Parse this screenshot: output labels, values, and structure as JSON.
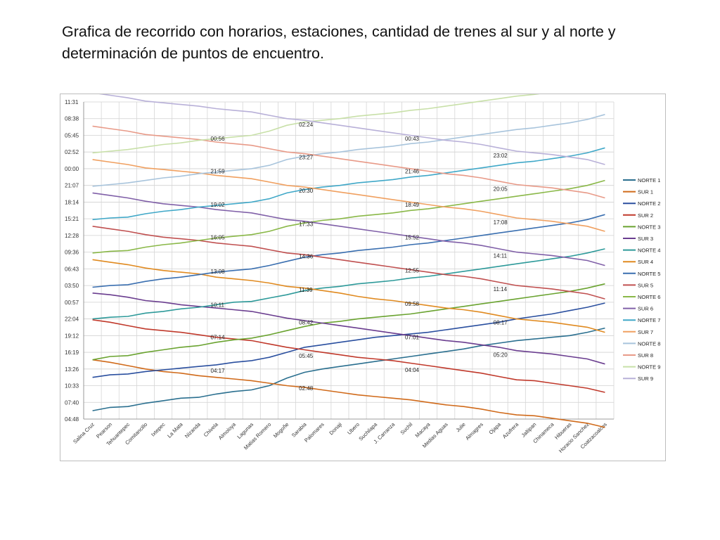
{
  "slide": {
    "title": "Grafica de recorrido con horarios, estaciones, cantidad de trenes al sur y al norte y determinación de puntos de encuentro."
  },
  "chart_data": {
    "type": "line",
    "grid": true,
    "legend_position": "right",
    "y_tick_labels": [
      "11:31",
      "08:38",
      "05:45",
      "02:52",
      "00:00",
      "21:07",
      "18:14",
      "15:21",
      "12:28",
      "09:36",
      "06:43",
      "03:50",
      "00:57",
      "22:04",
      "19:12",
      "16:19",
      "13:26",
      "10:33",
      "07:40",
      "04:48"
    ],
    "categories": [
      "Salina Cruz",
      "Pearson",
      "Tehuantepec",
      "Comitancillo",
      "Ixtepec",
      "La Mata",
      "Nizanda",
      "Chivela",
      "Almoloya",
      "Lagunas",
      "Matias Romero",
      "Mogoñe",
      "Sarabia",
      "Palomares",
      "Donaji",
      "Ubero",
      "Suchilapa",
      "J. Carranza",
      "Suchil",
      "Macaya",
      "Medias Aguas",
      "Julie",
      "Almagres",
      "Ojapa",
      "Azufrera",
      "Jaltipan",
      "Chinameca",
      "Hibueras",
      "Horacio Sanchez",
      "Coatzacoalcos"
    ],
    "series": [
      {
        "name": "NORTE 1",
        "color": "#2a6f8f",
        "values": [
          0.5,
          0.7,
          0.75,
          0.95,
          1.1,
          1.25,
          1.3,
          1.5,
          1.65,
          1.75,
          2.0,
          2.45,
          2.8,
          3.0,
          3.15,
          3.3,
          3.45,
          3.6,
          3.75,
          3.9,
          4.05,
          4.2,
          4.4,
          4.55,
          4.7,
          4.8,
          4.9,
          5.0,
          5.2,
          5.45
        ]
      },
      {
        "name": "SUR 1",
        "color": "#d06a1a",
        "values": [
          3.55,
          3.4,
          3.2,
          3.0,
          2.85,
          2.75,
          2.6,
          2.5,
          2.4,
          2.3,
          2.15,
          2.0,
          1.9,
          1.75,
          1.6,
          1.45,
          1.35,
          1.25,
          1.15,
          1.0,
          0.85,
          0.75,
          0.6,
          0.4,
          0.25,
          0.2,
          0.05,
          -0.1,
          -0.25,
          -0.5
        ]
      },
      {
        "name": "NORTE 2",
        "color": "#2a4f9f",
        "values": [
          2.5,
          2.65,
          2.7,
          2.85,
          2.95,
          3.05,
          3.15,
          3.25,
          3.4,
          3.5,
          3.7,
          4.0,
          4.3,
          4.45,
          4.6,
          4.75,
          4.9,
          5.0,
          5.1,
          5.2,
          5.35,
          5.5,
          5.65,
          5.8,
          6.0,
          6.15,
          6.3,
          6.5,
          6.7,
          6.95
        ]
      },
      {
        "name": "SUR 2",
        "color": "#c0392b",
        "values": [
          5.95,
          5.8,
          5.6,
          5.4,
          5.3,
          5.2,
          5.05,
          4.9,
          4.8,
          4.7,
          4.5,
          4.3,
          4.15,
          4.0,
          3.85,
          3.7,
          3.6,
          3.5,
          3.35,
          3.2,
          3.05,
          2.9,
          2.75,
          2.55,
          2.35,
          2.3,
          2.15,
          2.0,
          1.85,
          1.6
        ]
      },
      {
        "name": "NORTE 3",
        "color": "#6aa330",
        "values": [
          3.55,
          3.75,
          3.8,
          4.0,
          4.15,
          4.3,
          4.4,
          4.6,
          4.75,
          4.85,
          5.05,
          5.3,
          5.55,
          5.75,
          5.85,
          6.0,
          6.1,
          6.2,
          6.3,
          6.45,
          6.6,
          6.75,
          6.9,
          7.05,
          7.2,
          7.35,
          7.5,
          7.65,
          7.85,
          8.1
        ]
      },
      {
        "name": "SUR 3",
        "color": "#6a3d8f",
        "values": [
          7.55,
          7.45,
          7.3,
          7.1,
          7.0,
          6.85,
          6.75,
          6.65,
          6.55,
          6.45,
          6.25,
          6.05,
          5.9,
          5.75,
          5.6,
          5.45,
          5.3,
          5.15,
          5.0,
          4.85,
          4.7,
          4.6,
          4.45,
          4.3,
          4.1,
          4.0,
          3.9,
          3.75,
          3.6,
          3.3
        ]
      },
      {
        "name": "NORTE 4",
        "color": "#2e9a9a",
        "values": [
          6.0,
          6.1,
          6.15,
          6.35,
          6.45,
          6.6,
          6.7,
          6.85,
          7.0,
          7.05,
          7.25,
          7.45,
          7.7,
          7.85,
          7.95,
          8.1,
          8.2,
          8.3,
          8.45,
          8.55,
          8.7,
          8.85,
          9.0,
          9.15,
          9.3,
          9.45,
          9.6,
          9.75,
          9.95,
          10.2
        ]
      },
      {
        "name": "SUR 4",
        "color": "#e08a20",
        "values": [
          9.55,
          9.4,
          9.25,
          9.05,
          8.9,
          8.8,
          8.7,
          8.5,
          8.4,
          8.3,
          8.15,
          7.95,
          7.85,
          7.7,
          7.55,
          7.35,
          7.2,
          7.1,
          6.95,
          6.8,
          6.65,
          6.55,
          6.4,
          6.2,
          6.0,
          5.9,
          5.8,
          5.65,
          5.5,
          5.2
        ]
      },
      {
        "name": "NORTE 5",
        "color": "#3a6fb0",
        "values": [
          7.9,
          8.0,
          8.05,
          8.25,
          8.4,
          8.5,
          8.65,
          8.8,
          8.9,
          9.0,
          9.2,
          9.45,
          9.7,
          9.85,
          9.95,
          10.1,
          10.2,
          10.3,
          10.45,
          10.55,
          10.7,
          10.85,
          11.0,
          11.15,
          11.3,
          11.45,
          11.6,
          11.75,
          11.95,
          12.25
        ]
      },
      {
        "name": "SUR 5",
        "color": "#c05050",
        "values": [
          11.55,
          11.4,
          11.25,
          11.05,
          10.9,
          10.8,
          10.7,
          10.55,
          10.45,
          10.35,
          10.15,
          9.95,
          9.85,
          9.7,
          9.55,
          9.4,
          9.25,
          9.1,
          8.95,
          8.8,
          8.65,
          8.55,
          8.4,
          8.2,
          8.0,
          7.9,
          7.8,
          7.65,
          7.5,
          7.2
        ]
      },
      {
        "name": "NORTE 6",
        "color": "#8ab848",
        "values": [
          9.95,
          10.05,
          10.1,
          10.3,
          10.45,
          10.55,
          10.7,
          10.85,
          10.95,
          11.05,
          11.25,
          11.55,
          11.75,
          11.9,
          12.0,
          12.15,
          12.25,
          12.35,
          12.5,
          12.6,
          12.75,
          12.9,
          13.05,
          13.2,
          13.35,
          13.5,
          13.65,
          13.8,
          14.0,
          14.3
        ]
      },
      {
        "name": "SUR 6",
        "color": "#8060a8",
        "values": [
          13.55,
          13.4,
          13.25,
          13.05,
          12.9,
          12.8,
          12.7,
          12.55,
          12.45,
          12.35,
          12.15,
          11.95,
          11.85,
          11.7,
          11.55,
          11.4,
          11.25,
          11.1,
          10.95,
          10.8,
          10.65,
          10.55,
          10.4,
          10.2,
          10.0,
          9.9,
          9.8,
          9.65,
          9.5,
          9.2
        ]
      },
      {
        "name": "NORTE 7",
        "color": "#40a8c8",
        "values": [
          11.95,
          12.05,
          12.1,
          12.3,
          12.45,
          12.55,
          12.7,
          12.8,
          12.9,
          13.0,
          13.2,
          13.55,
          13.75,
          13.9,
          14.0,
          14.15,
          14.25,
          14.35,
          14.5,
          14.6,
          14.75,
          14.9,
          15.05,
          15.2,
          15.35,
          15.45,
          15.6,
          15.75,
          15.95,
          16.25
        ]
      },
      {
        "name": "SUR 7",
        "color": "#f0a060",
        "values": [
          15.55,
          15.4,
          15.25,
          15.05,
          14.95,
          14.85,
          14.75,
          14.6,
          14.5,
          14.4,
          14.2,
          14.0,
          13.9,
          13.75,
          13.6,
          13.45,
          13.3,
          13.15,
          13.0,
          12.85,
          12.7,
          12.6,
          12.45,
          12.25,
          12.05,
          11.95,
          11.85,
          11.7,
          11.55,
          11.25
        ]
      },
      {
        "name": "NORTE 8",
        "color": "#a8c4dc",
        "values": [
          13.95,
          14.05,
          14.15,
          14.3,
          14.45,
          14.55,
          14.7,
          14.8,
          14.9,
          15.0,
          15.2,
          15.55,
          15.75,
          15.9,
          16.0,
          16.15,
          16.25,
          16.35,
          16.5,
          16.6,
          16.75,
          16.9,
          17.05,
          17.2,
          17.35,
          17.45,
          17.6,
          17.75,
          17.95,
          18.25
        ]
      },
      {
        "name": "SUR 8",
        "color": "#e89a88",
        "values": [
          17.55,
          17.4,
          17.25,
          17.05,
          16.95,
          16.85,
          16.75,
          16.6,
          16.5,
          16.4,
          16.2,
          16.0,
          15.9,
          15.75,
          15.6,
          15.45,
          15.3,
          15.15,
          15.0,
          14.85,
          14.7,
          14.6,
          14.45,
          14.25,
          14.05,
          13.95,
          13.85,
          13.7,
          13.55,
          13.25
        ]
      },
      {
        "name": "NORTE 9",
        "color": "#c8e0a8",
        "values": [
          15.95,
          16.05,
          16.15,
          16.3,
          16.45,
          16.55,
          16.7,
          16.8,
          16.9,
          17.0,
          17.25,
          17.6,
          17.8,
          17.9,
          18.0,
          18.15,
          18.25,
          18.35,
          18.5,
          18.6,
          18.75,
          18.9,
          19.05,
          19.2,
          19.35,
          19.45,
          19.6,
          19.75,
          19.95,
          20.25
        ]
      },
      {
        "name": "SUR 9",
        "color": "#b8b0d8",
        "values": [
          19.55,
          19.4,
          19.25,
          19.05,
          18.95,
          18.85,
          18.75,
          18.6,
          18.5,
          18.4,
          18.2,
          18.0,
          17.9,
          17.75,
          17.6,
          17.45,
          17.3,
          17.15,
          17.0,
          16.85,
          16.7,
          16.6,
          16.45,
          16.25,
          16.05,
          15.95,
          15.85,
          15.7,
          15.55,
          15.25
        ]
      }
    ],
    "annotations": [
      {
        "text": "00:56",
        "cat": 7,
        "v": 16.8
      },
      {
        "text": "21:59",
        "cat": 7,
        "v": 14.85
      },
      {
        "text": "19:02",
        "cat": 7,
        "v": 12.85
      },
      {
        "text": "16:05",
        "cat": 7,
        "v": 10.9
      },
      {
        "text": "13:08",
        "cat": 7,
        "v": 8.85
      },
      {
        "text": "10:11",
        "cat": 7,
        "v": 6.85
      },
      {
        "text": "07:14",
        "cat": 7,
        "v": 4.9
      },
      {
        "text": "04:17",
        "cat": 7,
        "v": 2.9
      },
      {
        "text": "02:24",
        "cat": 12,
        "v": 17.65
      },
      {
        "text": "23:27",
        "cat": 12,
        "v": 15.7
      },
      {
        "text": "20:30",
        "cat": 12,
        "v": 13.7
      },
      {
        "text": "17:33",
        "cat": 12,
        "v": 11.7
      },
      {
        "text": "14:36",
        "cat": 12,
        "v": 9.75
      },
      {
        "text": "11:39",
        "cat": 12,
        "v": 7.75
      },
      {
        "text": "08:42",
        "cat": 12,
        "v": 5.8
      },
      {
        "text": "05:45",
        "cat": 12,
        "v": 3.8
      },
      {
        "text": "02:48",
        "cat": 12,
        "v": 1.85
      },
      {
        "text": "00:43",
        "cat": 18,
        "v": 16.8
      },
      {
        "text": "21:46",
        "cat": 18,
        "v": 14.85
      },
      {
        "text": "18:49",
        "cat": 18,
        "v": 12.85
      },
      {
        "text": "15:52",
        "cat": 18,
        "v": 10.9
      },
      {
        "text": "12:55",
        "cat": 18,
        "v": 8.9
      },
      {
        "text": "09:58",
        "cat": 18,
        "v": 6.9
      },
      {
        "text": "07:01",
        "cat": 18,
        "v": 4.9
      },
      {
        "text": "04:04",
        "cat": 18,
        "v": 2.95
      },
      {
        "text": "23:02",
        "cat": 23,
        "v": 15.8
      },
      {
        "text": "20:05",
        "cat": 23,
        "v": 13.8
      },
      {
        "text": "17:08",
        "cat": 23,
        "v": 11.8
      },
      {
        "text": "14:11",
        "cat": 23,
        "v": 9.8
      },
      {
        "text": "11:14",
        "cat": 23,
        "v": 7.8
      },
      {
        "text": "08:17",
        "cat": 23,
        "v": 5.8
      },
      {
        "text": "05:20",
        "cat": 23,
        "v": 3.85
      }
    ]
  }
}
